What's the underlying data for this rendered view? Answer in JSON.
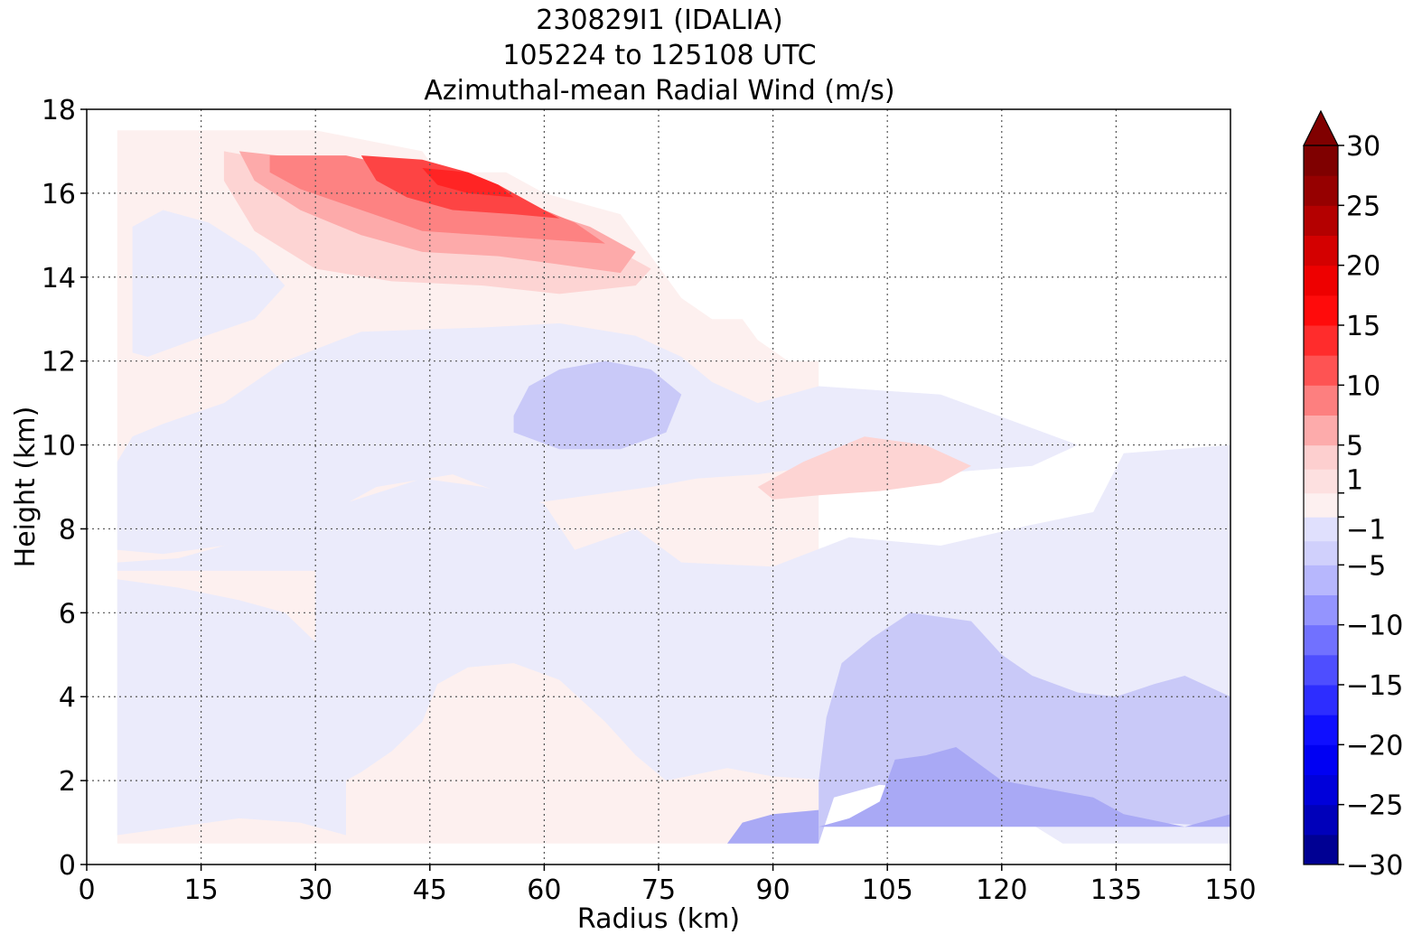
{
  "chart_data": {
    "type": "heatmap",
    "title": [
      "230829I1 (IDALIA)",
      "105224 to 125108 UTC",
      "Azimuthal-mean Radial Wind (m/s)"
    ],
    "xlabel": "Radius (km)",
    "ylabel": "Height (km)",
    "xlim": [
      0,
      150
    ],
    "ylim": [
      0,
      18
    ],
    "xticks": [
      0,
      15,
      30,
      45,
      60,
      75,
      90,
      105,
      120,
      135,
      150
    ],
    "yticks": [
      0,
      2,
      4,
      6,
      8,
      10,
      12,
      14,
      16,
      18
    ],
    "grid": true,
    "colorbar": {
      "range": [
        -30,
        30
      ],
      "extend": "max",
      "tick_values": [
        30,
        25,
        20,
        15,
        10,
        5,
        1,
        -1,
        -5,
        -10,
        -15,
        -20,
        -25,
        -30
      ],
      "tick_labels": [
        "30",
        "25",
        "20",
        "15",
        "10",
        "5",
        "1",
        "−1",
        "−5",
        "−10",
        "−15",
        "−20",
        "−25",
        "−30"
      ],
      "levels": [
        -30,
        -27.5,
        -25,
        -22.5,
        -20,
        -17.5,
        -15,
        -12.5,
        -10,
        -7.5,
        -5,
        -3,
        -1,
        1,
        3,
        5,
        7.5,
        10,
        12.5,
        15,
        17.5,
        20,
        22.5,
        25,
        27.5,
        30
      ]
    },
    "regions": [
      {
        "level": "1-3",
        "color": "#fdf0ef",
        "points": [
          [
            4,
            0.5
          ],
          [
            96,
            0.5
          ],
          [
            96,
            12
          ],
          [
            92,
            12
          ],
          [
            88,
            12.5
          ],
          [
            86,
            13
          ],
          [
            82,
            13
          ],
          [
            78,
            13.5
          ],
          [
            74,
            14.5
          ],
          [
            70,
            15.5
          ],
          [
            60,
            16
          ],
          [
            55,
            16.5
          ],
          [
            46,
            16.5
          ],
          [
            44,
            17
          ],
          [
            30,
            17.5
          ],
          [
            4,
            17.5
          ]
        ]
      },
      {
        "level": "-1 to -3",
        "color": "#ebebfb",
        "points": [
          [
            4,
            0.7
          ],
          [
            20,
            1.1
          ],
          [
            28,
            1.0
          ],
          [
            34,
            0.7
          ],
          [
            34,
            5.0
          ],
          [
            30,
            5.3
          ],
          [
            26,
            6.0
          ],
          [
            20,
            6.3
          ],
          [
            12,
            6.6
          ],
          [
            4,
            6.8
          ]
        ]
      },
      {
        "level": "-1 to -3",
        "color": "#ebebfb",
        "points": [
          [
            4,
            7.2
          ],
          [
            12,
            7.3
          ],
          [
            22,
            7.8
          ],
          [
            32,
            8.5
          ],
          [
            44,
            9.2
          ],
          [
            52,
            9.0
          ],
          [
            60,
            8.6
          ],
          [
            64,
            7.5
          ],
          [
            72,
            8.0
          ],
          [
            78,
            7.2
          ],
          [
            90,
            7.1
          ],
          [
            100,
            7.8
          ],
          [
            112,
            7.6
          ],
          [
            124,
            8.1
          ],
          [
            132,
            8.4
          ],
          [
            136,
            9.8
          ],
          [
            150,
            10.0
          ],
          [
            150,
            0.5
          ],
          [
            128,
            0.5
          ],
          [
            120,
            1.4
          ],
          [
            110,
            1.8
          ],
          [
            98,
            2.0
          ],
          [
            90,
            2.1
          ],
          [
            84,
            2.3
          ],
          [
            76,
            2.0
          ],
          [
            72,
            2.6
          ],
          [
            68,
            3.4
          ],
          [
            62,
            4.4
          ],
          [
            56,
            4.8
          ],
          [
            50,
            4.7
          ],
          [
            46,
            4.3
          ],
          [
            44,
            3.4
          ],
          [
            40,
            2.7
          ],
          [
            36,
            2.2
          ],
          [
            32,
            1.8
          ],
          [
            30,
            1.8
          ],
          [
            30,
            7.0
          ],
          [
            20,
            7.0
          ],
          [
            12,
            7.0
          ],
          [
            4,
            7.0
          ]
        ]
      },
      {
        "level": "-1 to -3",
        "color": "#ebebfb",
        "points": [
          [
            4,
            9.6
          ],
          [
            6,
            10.2
          ],
          [
            10,
            10.5
          ],
          [
            18,
            11.0
          ],
          [
            26,
            12.0
          ],
          [
            36,
            12.7
          ],
          [
            52,
            12.8
          ],
          [
            62,
            12.9
          ],
          [
            72,
            12.6
          ],
          [
            78,
            12.1
          ],
          [
            82,
            11.5
          ],
          [
            88,
            11.0
          ],
          [
            96,
            11.4
          ],
          [
            112,
            11.2
          ],
          [
            124,
            10.4
          ],
          [
            130,
            10.0
          ],
          [
            124,
            9.5
          ],
          [
            110,
            9.3
          ],
          [
            100,
            9.6
          ],
          [
            88,
            9.3
          ],
          [
            80,
            9.2
          ],
          [
            74,
            9.0
          ],
          [
            66,
            8.8
          ],
          [
            58,
            8.6
          ],
          [
            48,
            9.3
          ],
          [
            38,
            9.0
          ],
          [
            28,
            8.0
          ],
          [
            18,
            7.6
          ],
          [
            10,
            7.4
          ],
          [
            4,
            7.5
          ]
        ]
      },
      {
        "level": "-1 to -3",
        "color": "#ebebfb",
        "points": [
          [
            6,
            12.2
          ],
          [
            6,
            15.2
          ],
          [
            10,
            15.6
          ],
          [
            16,
            15.3
          ],
          [
            22,
            14.6
          ],
          [
            26,
            13.8
          ],
          [
            22,
            13.0
          ],
          [
            14,
            12.5
          ],
          [
            8,
            12.1
          ]
        ]
      },
      {
        "level": "-3 to -5",
        "color": "#c9c9f8",
        "points": [
          [
            56,
            10.7
          ],
          [
            58,
            11.4
          ],
          [
            62,
            11.8
          ],
          [
            68,
            12.0
          ],
          [
            74,
            11.8
          ],
          [
            78,
            11.2
          ],
          [
            76,
            10.3
          ],
          [
            70,
            9.9
          ],
          [
            62,
            9.9
          ],
          [
            56,
            10.3
          ]
        ]
      },
      {
        "level": "-3 to -5",
        "color": "#c9c9f8",
        "points": [
          [
            96,
            0.5
          ],
          [
            96,
            2.0
          ],
          [
            97,
            3.5
          ],
          [
            99,
            4.8
          ],
          [
            103,
            5.4
          ],
          [
            108,
            6.0
          ],
          [
            116,
            5.8
          ],
          [
            120,
            5.0
          ],
          [
            124,
            4.5
          ],
          [
            130,
            4.1
          ],
          [
            135,
            4.0
          ],
          [
            140,
            4.3
          ],
          [
            144,
            4.5
          ],
          [
            150,
            4.0
          ],
          [
            150,
            0.9
          ],
          [
            140,
            1.0
          ],
          [
            130,
            1.2
          ],
          [
            120,
            1.5
          ],
          [
            110,
            1.8
          ],
          [
            104,
            1.9
          ],
          [
            98,
            1.6
          ]
        ]
      },
      {
        "level": "-5 to -7.5",
        "color": "#a9a9f5",
        "points": [
          [
            84,
            0.5
          ],
          [
            96,
            0.5
          ],
          [
            96,
            1.3
          ],
          [
            90,
            1.2
          ],
          [
            86,
            1.0
          ]
        ]
      },
      {
        "level": "-5 to -7.5",
        "color": "#a9a9f5",
        "points": [
          [
            96,
            0.9
          ],
          [
            100,
            1.1
          ],
          [
            104,
            1.5
          ],
          [
            106,
            2.5
          ],
          [
            110,
            2.6
          ],
          [
            114,
            2.8
          ],
          [
            120,
            2.0
          ],
          [
            126,
            1.8
          ],
          [
            132,
            1.6
          ],
          [
            136,
            1.2
          ],
          [
            144,
            0.9
          ],
          [
            150,
            1.2
          ],
          [
            150,
            0.9
          ],
          [
            96,
            0.9
          ]
        ]
      },
      {
        "level": "3-5",
        "color": "#fdd4d3",
        "points": [
          [
            88,
            9.0
          ],
          [
            94,
            9.6
          ],
          [
            102,
            10.2
          ],
          [
            110,
            10.0
          ],
          [
            116,
            9.5
          ],
          [
            112,
            9.1
          ],
          [
            104,
            8.9
          ],
          [
            96,
            8.8
          ],
          [
            90,
            8.7
          ]
        ]
      },
      {
        "level": "3-5",
        "color": "#fdd4d3",
        "points": [
          [
            18,
            17.0
          ],
          [
            30,
            16.6
          ],
          [
            44,
            16.2
          ],
          [
            54,
            15.8
          ],
          [
            62,
            15.4
          ],
          [
            70,
            14.6
          ],
          [
            74,
            14.2
          ],
          [
            72,
            13.8
          ],
          [
            62,
            13.6
          ],
          [
            52,
            13.8
          ],
          [
            40,
            13.9
          ],
          [
            30,
            14.2
          ],
          [
            22,
            15.1
          ],
          [
            18,
            16.3
          ]
        ]
      },
      {
        "level": "5-7.5",
        "color": "#fdaaaa",
        "points": [
          [
            20,
            17.0
          ],
          [
            30,
            16.8
          ],
          [
            44,
            16.4
          ],
          [
            56,
            15.8
          ],
          [
            66,
            15.2
          ],
          [
            72,
            14.6
          ],
          [
            70,
            14.1
          ],
          [
            62,
            14.3
          ],
          [
            54,
            14.5
          ],
          [
            44,
            14.6
          ],
          [
            36,
            15.0
          ],
          [
            28,
            15.6
          ],
          [
            22,
            16.3
          ]
        ]
      },
      {
        "level": "7.5-10",
        "color": "#fd8282",
        "points": [
          [
            24,
            16.9
          ],
          [
            34,
            16.9
          ],
          [
            44,
            16.5
          ],
          [
            56,
            15.9
          ],
          [
            64,
            15.3
          ],
          [
            68,
            14.8
          ],
          [
            60,
            14.9
          ],
          [
            52,
            15.0
          ],
          [
            44,
            15.1
          ],
          [
            36,
            15.6
          ],
          [
            28,
            16.1
          ],
          [
            24,
            16.5
          ]
        ]
      },
      {
        "level": "10-12.5",
        "color": "#fd4444",
        "points": [
          [
            36,
            16.9
          ],
          [
            44,
            16.8
          ],
          [
            50,
            16.5
          ],
          [
            54,
            16.2
          ],
          [
            58,
            15.8
          ],
          [
            62,
            15.4
          ],
          [
            56,
            15.5
          ],
          [
            48,
            15.6
          ],
          [
            42,
            15.9
          ],
          [
            38,
            16.3
          ]
        ]
      },
      {
        "level": "12.5-15",
        "color": "#ff2424",
        "points": [
          [
            44,
            16.6
          ],
          [
            50,
            16.5
          ],
          [
            54,
            16.2
          ],
          [
            56,
            15.9
          ],
          [
            50,
            16.0
          ],
          [
            46,
            16.2
          ]
        ]
      }
    ]
  }
}
